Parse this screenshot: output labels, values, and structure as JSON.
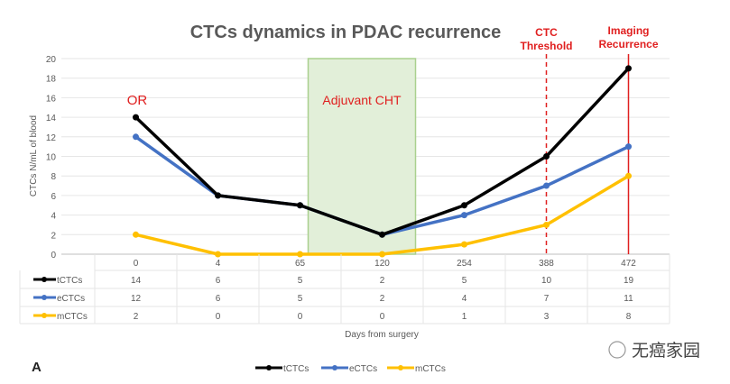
{
  "chart_data": {
    "type": "line",
    "title": "CTCs dynamics in PDAC recurrence",
    "xlabel": "Days from surgery",
    "ylabel": "CTCs N/mL of blood",
    "ylim": [
      0,
      20
    ],
    "yticks": [
      0,
      2,
      4,
      6,
      8,
      10,
      12,
      14,
      16,
      18,
      20
    ],
    "categories": [
      "0",
      "4",
      "65",
      "120",
      "254",
      "388",
      "472"
    ],
    "series": [
      {
        "name": "tCTCs",
        "color": "#000000",
        "values": [
          14,
          6,
          5,
          2,
          5,
          10,
          19
        ]
      },
      {
        "name": "eCTCs",
        "color": "#4472c4",
        "values": [
          12,
          6,
          5,
          2,
          4,
          7,
          11
        ]
      },
      {
        "name": "mCTCs",
        "color": "#ffc000",
        "values": [
          2,
          0,
          0,
          0,
          1,
          3,
          8
        ]
      }
    ],
    "grid": true,
    "legend": "bottom-center",
    "data_table": true,
    "annotations": {
      "or_label": "OR",
      "shaded_region": {
        "label": "Adjuvant CHT",
        "from_category": "65",
        "to_category": "120",
        "color": "#e2efd9"
      },
      "threshold_line": {
        "label_line1": "CTC",
        "label_line2": "Threshold",
        "at_category": "388",
        "style": "dashed",
        "color": "#e02020"
      },
      "recurrence_line": {
        "label_line1": "Imaging",
        "label_line2": "Recurrence",
        "at_category": "472",
        "style": "solid",
        "color": "#e02020"
      }
    },
    "panel_label": "A"
  },
  "watermark": "无癌家园"
}
